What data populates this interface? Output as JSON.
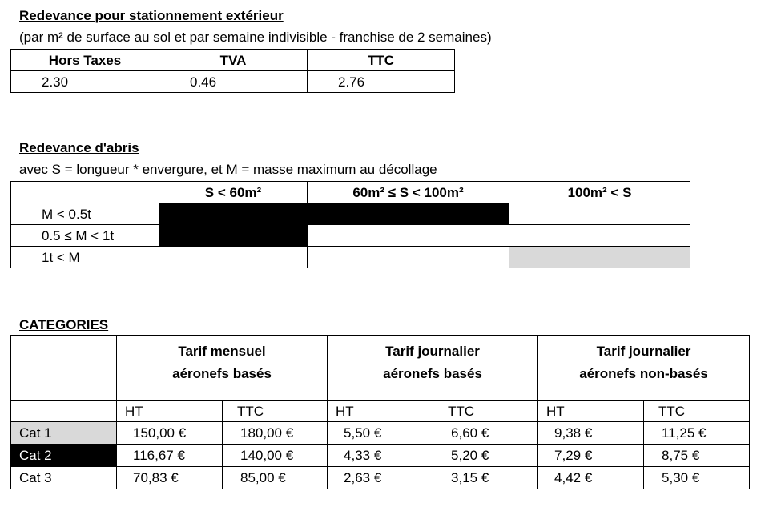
{
  "section1": {
    "title": "Redevance pour stationnement extérieur",
    "subtitle": "(par m² de surface au sol et par semaine indivisible - franchise de 2 semaines)",
    "headers": [
      "Hors Taxes",
      "TVA",
      "TTC"
    ],
    "values": [
      "2.30",
      "0.46",
      "2.76"
    ]
  },
  "section2": {
    "title": "Redevance d'abris",
    "subtitle": "avec S = longueur * envergure, et M = masse maximum au décollage",
    "col_headers": [
      "S < 60m²",
      "60m² ≤ S < 100m²",
      "100m² < S"
    ],
    "row_labels": [
      "M < 0.5t",
      "0.5 ≤ M < 1t",
      "1t < M"
    ]
  },
  "section3": {
    "title": "CATEGORIES",
    "groups": [
      {
        "line1": "Tarif mensuel",
        "line2": "aéronefs basés"
      },
      {
        "line1": "Tarif journalier",
        "line2": "aéronefs basés"
      },
      {
        "line1": "Tarif journalier",
        "line2": "aéronefs non-basés"
      }
    ],
    "sub_headers": [
      "HT",
      "TTC",
      "HT",
      "TTC",
      "HT",
      "TTC"
    ],
    "rows": [
      {
        "label": "Cat 1",
        "values": [
          "150,00 €",
          "180,00 €",
          "5,50 €",
          "6,60 €",
          "9,38 €",
          "11,25 €"
        ]
      },
      {
        "label": "Cat 2",
        "values": [
          "116,67 €",
          "140,00 €",
          "4,33 €",
          "5,20 €",
          "7,29 €",
          "8,75 €"
        ]
      },
      {
        "label": "Cat 3",
        "values": [
          "70,83 €",
          "85,00 €",
          "2,63 €",
          "3,15 €",
          "4,42 €",
          "5,30 €"
        ]
      }
    ]
  },
  "colors": {
    "black_cell": "#000000",
    "grey_cell": "#d9d9d9"
  }
}
